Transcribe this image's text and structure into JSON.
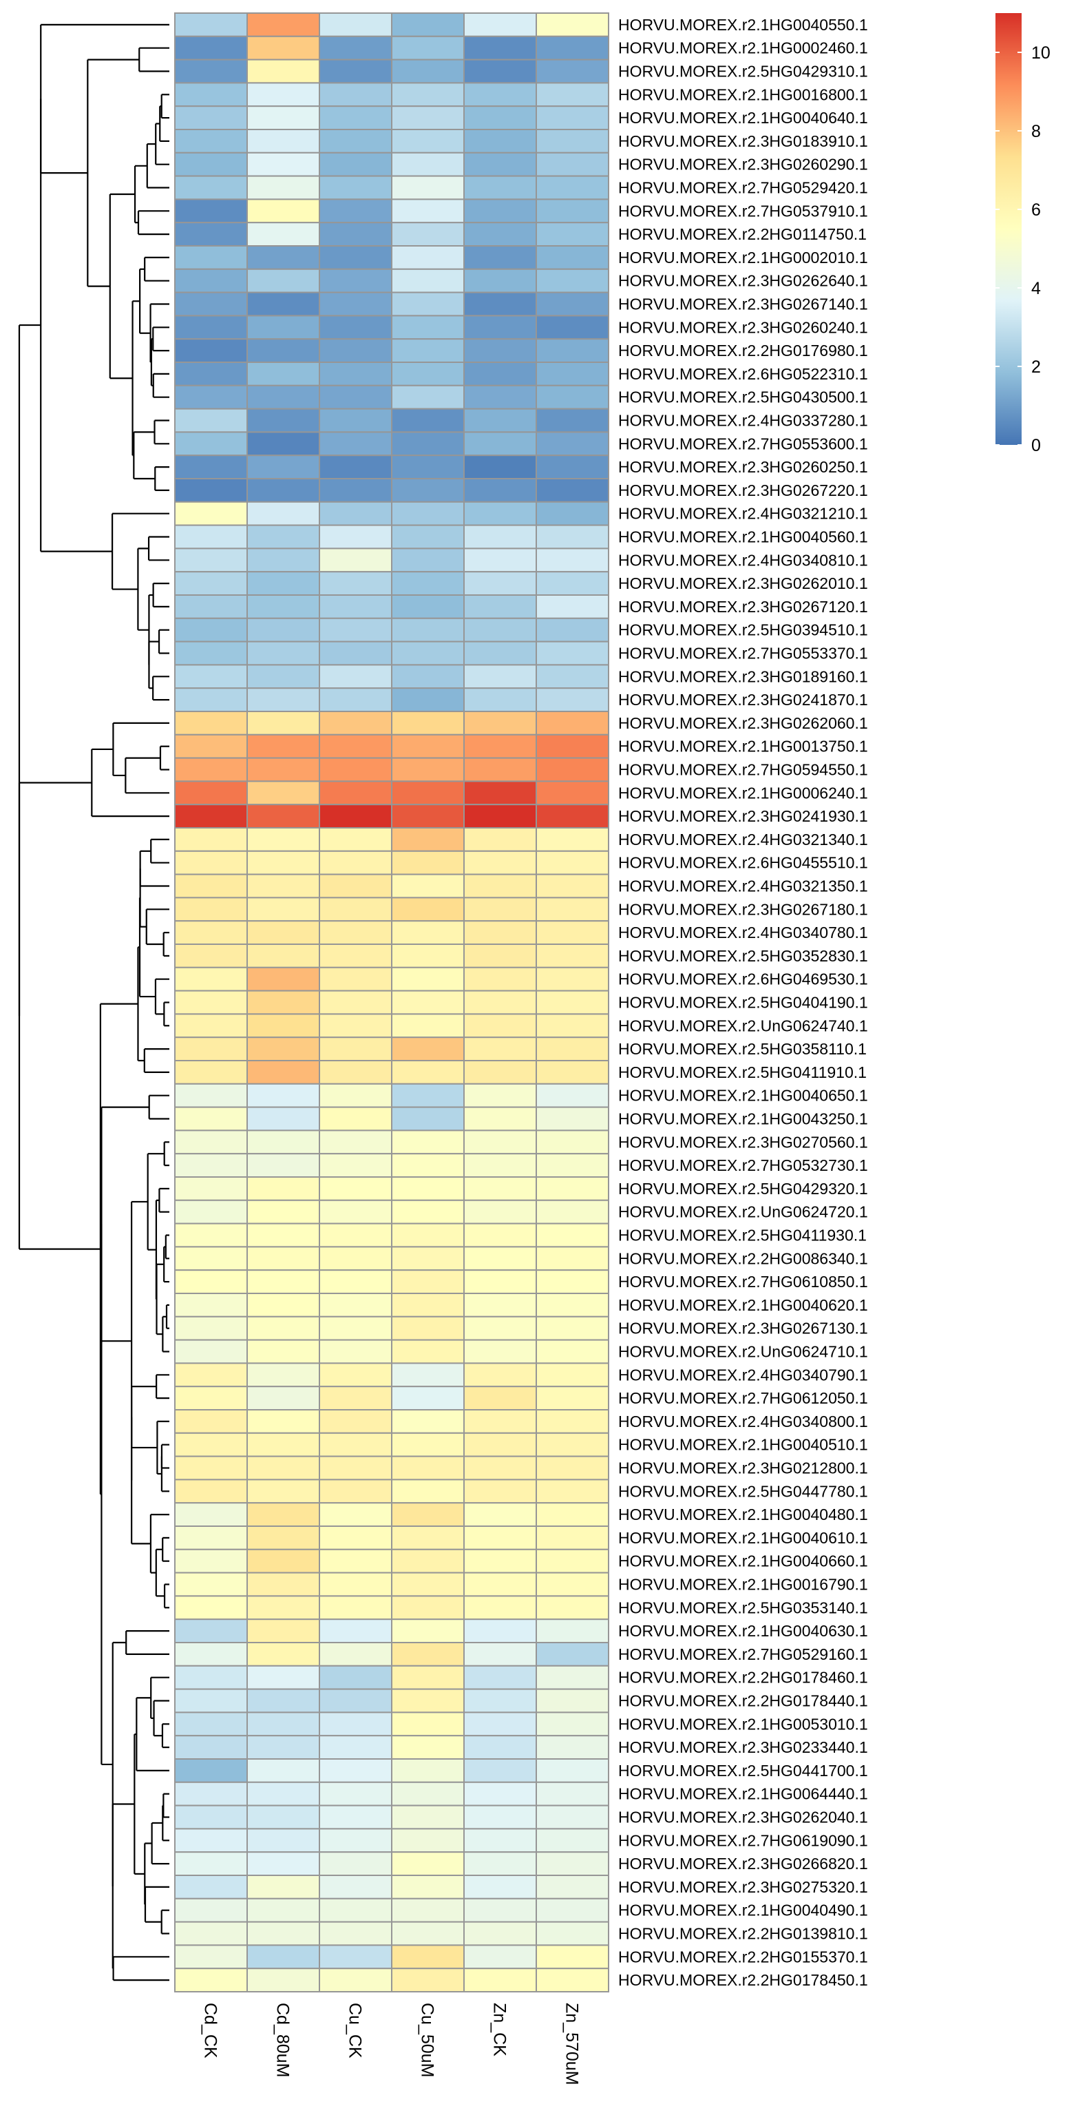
{
  "chart_data": {
    "type": "heatmap",
    "title": "",
    "columns": [
      "Cd_CK",
      "Cd_80uM",
      "Cu_CK",
      "Cu_50uM",
      "Zn_CK",
      "Zn_570uM"
    ],
    "rows": [
      {
        "gene": "HORVU.MOREX.r2.1HG0040550.1",
        "values": [
          2.5,
          8.8,
          3.3,
          1.7,
          3.5,
          5.3
        ]
      },
      {
        "gene": "HORVU.MOREX.r2.1HG0002460.1",
        "values": [
          0.7,
          7.8,
          1.0,
          2.0,
          0.6,
          1.0
        ]
      },
      {
        "gene": "HORVU.MOREX.r2.5HG0429310.1",
        "values": [
          0.9,
          6.0,
          0.8,
          1.5,
          0.6,
          1.2
        ]
      },
      {
        "gene": "HORVU.MOREX.r2.1HG0016800.1",
        "values": [
          2.0,
          3.6,
          2.2,
          2.6,
          2.0,
          2.6
        ]
      },
      {
        "gene": "HORVU.MOREX.r2.1HG0040640.1",
        "values": [
          2.2,
          3.8,
          2.0,
          2.8,
          1.8,
          2.4
        ]
      },
      {
        "gene": "HORVU.MOREX.r2.3HG0183910.1",
        "values": [
          1.9,
          3.5,
          1.8,
          2.7,
          1.6,
          2.3
        ]
      },
      {
        "gene": "HORVU.MOREX.r2.3HG0260290.1",
        "values": [
          1.7,
          3.7,
          1.6,
          3.2,
          1.5,
          2.2
        ]
      },
      {
        "gene": "HORVU.MOREX.r2.7HG0529420.1",
        "values": [
          2.1,
          4.1,
          2.0,
          4.0,
          1.9,
          2.0
        ]
      },
      {
        "gene": "HORVU.MOREX.r2.7HG0537910.1",
        "values": [
          0.6,
          5.7,
          1.2,
          3.5,
          1.4,
          1.8
        ]
      },
      {
        "gene": "HORVU.MOREX.r2.2HG0114750.1",
        "values": [
          0.8,
          3.9,
          1.1,
          2.8,
          1.4,
          2.0
        ]
      },
      {
        "gene": "HORVU.MOREX.r2.1HG0002010.1",
        "values": [
          1.8,
          1.1,
          0.9,
          3.4,
          0.9,
          1.6
        ]
      },
      {
        "gene": "HORVU.MOREX.r2.3HG0262640.1",
        "values": [
          1.4,
          2.3,
          1.3,
          3.3,
          1.6,
          2.0
        ]
      },
      {
        "gene": "HORVU.MOREX.r2.3HG0267140.1",
        "values": [
          1.1,
          0.6,
          1.2,
          2.5,
          0.6,
          1.1
        ]
      },
      {
        "gene": "HORVU.MOREX.r2.3HG0260240.1",
        "values": [
          0.8,
          1.4,
          0.9,
          2.0,
          0.9,
          0.6
        ]
      },
      {
        "gene": "HORVU.MOREX.r2.2HG0176980.1",
        "values": [
          0.5,
          0.9,
          1.1,
          2.0,
          1.1,
          1.4
        ]
      },
      {
        "gene": "HORVU.MOREX.r2.6HG0522310.1",
        "values": [
          0.9,
          1.8,
          1.4,
          1.9,
          1.0,
          1.5
        ]
      },
      {
        "gene": "HORVU.MOREX.r2.5HG0430500.1",
        "values": [
          1.3,
          1.2,
          1.2,
          2.5,
          1.3,
          1.6
        ]
      },
      {
        "gene": "HORVU.MOREX.r2.4HG0337280.1",
        "values": [
          2.6,
          0.8,
          1.4,
          0.7,
          1.5,
          0.8
        ]
      },
      {
        "gene": "HORVU.MOREX.r2.7HG0553600.1",
        "values": [
          1.9,
          0.4,
          1.3,
          0.9,
          1.6,
          1.2
        ]
      },
      {
        "gene": "HORVU.MOREX.r2.3HG0260250.1",
        "values": [
          0.7,
          1.2,
          0.5,
          0.9,
          0.3,
          0.8
        ]
      },
      {
        "gene": "HORVU.MOREX.r2.3HG0267220.1",
        "values": [
          0.4,
          0.7,
          0.8,
          1.1,
          0.8,
          0.5
        ]
      },
      {
        "gene": "HORVU.MOREX.r2.4HG0321210.1",
        "values": [
          5.4,
          3.4,
          2.2,
          2.2,
          2.0,
          1.6
        ]
      },
      {
        "gene": "HORVU.MOREX.r2.1HG0040560.1",
        "values": [
          3.2,
          2.4,
          3.4,
          2.3,
          3.2,
          3.0
        ]
      },
      {
        "gene": "HORVU.MOREX.r2.4HG0340810.1",
        "values": [
          3.0,
          2.4,
          4.6,
          2.2,
          3.4,
          3.4
        ]
      },
      {
        "gene": "HORVU.MOREX.r2.3HG0262010.1",
        "values": [
          2.6,
          2.0,
          2.6,
          2.0,
          2.9,
          2.7
        ]
      },
      {
        "gene": "HORVU.MOREX.r2.3HG0267120.1",
        "values": [
          2.3,
          2.1,
          2.4,
          1.8,
          2.3,
          3.4
        ]
      },
      {
        "gene": "HORVU.MOREX.r2.5HG0394510.1",
        "values": [
          1.9,
          2.2,
          2.5,
          2.3,
          2.3,
          2.2
        ]
      },
      {
        "gene": "HORVU.MOREX.r2.7HG0553370.1",
        "values": [
          2.1,
          2.4,
          2.2,
          2.3,
          2.3,
          2.7
        ]
      },
      {
        "gene": "HORVU.MOREX.r2.3HG0189160.1",
        "values": [
          2.7,
          2.4,
          3.1,
          2.2,
          3.1,
          2.6
        ]
      },
      {
        "gene": "HORVU.MOREX.r2.3HG0241870.1",
        "values": [
          2.6,
          2.8,
          2.6,
          1.6,
          2.6,
          2.8
        ]
      },
      {
        "gene": "HORVU.MOREX.r2.3HG0262060.1",
        "values": [
          7.5,
          6.7,
          7.9,
          7.5,
          7.9,
          8.4
        ]
      },
      {
        "gene": "HORVU.MOREX.r2.1HG0013750.1",
        "values": [
          8.1,
          8.9,
          8.9,
          8.5,
          8.9,
          9.4
        ]
      },
      {
        "gene": "HORVU.MOREX.r2.7HG0594550.1",
        "values": [
          8.6,
          8.7,
          9.0,
          8.5,
          8.8,
          9.3
        ]
      },
      {
        "gene": "HORVU.MOREX.r2.1HG0006240.1",
        "values": [
          9.6,
          7.7,
          9.5,
          9.7,
          10.6,
          9.4
        ]
      },
      {
        "gene": "HORVU.MOREX.r2.3HG0241930.1",
        "values": [
          10.8,
          10.0,
          11.0,
          10.2,
          11.0,
          10.5
        ]
      },
      {
        "gene": "HORVU.MOREX.r2.4HG0321340.1",
        "values": [
          6.2,
          5.9,
          6.0,
          8.0,
          6.3,
          5.9
        ]
      },
      {
        "gene": "HORVU.MOREX.r2.6HG0455510.1",
        "values": [
          6.3,
          6.1,
          6.2,
          6.9,
          6.2,
          6.1
        ]
      },
      {
        "gene": "HORVU.MOREX.r2.4HG0321350.1",
        "values": [
          6.7,
          6.3,
          6.8,
          5.9,
          6.5,
          6.3
        ]
      },
      {
        "gene": "HORVU.MOREX.r2.3HG0267180.1",
        "values": [
          6.7,
          6.2,
          6.5,
          7.4,
          6.6,
          6.3
        ]
      },
      {
        "gene": "HORVU.MOREX.r2.4HG0340780.1",
        "values": [
          6.5,
          6.8,
          6.5,
          6.1,
          6.6,
          6.4
        ]
      },
      {
        "gene": "HORVU.MOREX.r2.5HG0352830.1",
        "values": [
          6.6,
          6.5,
          6.4,
          6.0,
          6.6,
          6.3
        ]
      },
      {
        "gene": "HORVU.MOREX.r2.6HG0469530.1",
        "values": [
          6.0,
          8.2,
          6.4,
          5.7,
          6.4,
          6.2
        ]
      },
      {
        "gene": "HORVU.MOREX.r2.5HG0404190.1",
        "values": [
          6.1,
          7.5,
          6.2,
          5.9,
          6.2,
          6.1
        ]
      },
      {
        "gene": "HORVU.MOREX.r2.UnG0624740.1",
        "values": [
          6.2,
          7.3,
          6.2,
          5.8,
          6.4,
          6.2
        ]
      },
      {
        "gene": "HORVU.MOREX.r2.5HG0358110.1",
        "values": [
          6.6,
          7.8,
          6.5,
          7.9,
          6.4,
          6.5
        ]
      },
      {
        "gene": "HORVU.MOREX.r2.5HG0411910.1",
        "values": [
          6.5,
          8.2,
          6.6,
          6.4,
          6.6,
          6.5
        ]
      },
      {
        "gene": "HORVU.MOREX.r2.1HG0040650.1",
        "values": [
          4.3,
          3.6,
          5.1,
          2.7,
          5.0,
          4.0
        ]
      },
      {
        "gene": "HORVU.MOREX.r2.1HG0043250.1",
        "values": [
          5.2,
          3.4,
          5.7,
          2.6,
          5.2,
          4.6
        ]
      },
      {
        "gene": "HORVU.MOREX.r2.3HG0270560.1",
        "values": [
          4.8,
          4.7,
          4.9,
          5.3,
          5.1,
          5.1
        ]
      },
      {
        "gene": "HORVU.MOREX.r2.7HG0532730.1",
        "values": [
          4.6,
          4.5,
          5.0,
          5.4,
          5.1,
          5.1
        ]
      },
      {
        "gene": "HORVU.MOREX.r2.5HG0429320.1",
        "values": [
          5.0,
          5.7,
          5.5,
          5.5,
          5.4,
          5.4
        ]
      },
      {
        "gene": "HORVU.MOREX.r2.UnG0624720.1",
        "values": [
          4.7,
          5.5,
          5.2,
          5.5,
          5.1,
          5.1
        ]
      },
      {
        "gene": "HORVU.MOREX.r2.5HG0411930.1",
        "values": [
          5.4,
          5.5,
          5.6,
          5.8,
          5.6,
          5.5
        ]
      },
      {
        "gene": "HORVU.MOREX.r2.2HG0086340.1",
        "values": [
          5.4,
          5.6,
          5.7,
          5.9,
          5.5,
          5.6
        ]
      },
      {
        "gene": "HORVU.MOREX.r2.7HG0610850.1",
        "values": [
          5.5,
          5.5,
          5.5,
          6.1,
          5.5,
          5.5
        ]
      },
      {
        "gene": "HORVU.MOREX.r2.1HG0040620.1",
        "values": [
          5.0,
          5.5,
          5.3,
          6.1,
          5.3,
          5.4
        ]
      },
      {
        "gene": "HORVU.MOREX.r2.3HG0267130.1",
        "values": [
          4.9,
          5.4,
          5.3,
          6.2,
          5.3,
          5.4
        ]
      },
      {
        "gene": "HORVU.MOREX.r2.UnG0624710.1",
        "values": [
          4.6,
          5.4,
          5.2,
          6.0,
          5.2,
          5.4
        ]
      },
      {
        "gene": "HORVU.MOREX.r2.4HG0340790.1",
        "values": [
          6.1,
          4.8,
          6.0,
          4.0,
          6.1,
          5.8
        ]
      },
      {
        "gene": "HORVU.MOREX.r2.7HG0612050.1",
        "values": [
          5.8,
          4.5,
          6.3,
          3.8,
          6.7,
          5.8
        ]
      },
      {
        "gene": "HORVU.MOREX.r2.4HG0340800.1",
        "values": [
          6.3,
          5.6,
          6.3,
          5.4,
          6.1,
          6.0
        ]
      },
      {
        "gene": "HORVU.MOREX.r2.1HG0040510.1",
        "values": [
          6.1,
          6.0,
          6.1,
          5.8,
          6.2,
          6.1
        ]
      },
      {
        "gene": "HORVU.MOREX.r2.3HG0212800.1",
        "values": [
          6.2,
          6.2,
          6.2,
          6.2,
          6.2,
          6.2
        ]
      },
      {
        "gene": "HORVU.MOREX.r2.5HG0447780.1",
        "values": [
          6.4,
          6.1,
          6.3,
          5.7,
          6.2,
          6.1
        ]
      },
      {
        "gene": "HORVU.MOREX.r2.1HG0040480.1",
        "values": [
          4.6,
          7.0,
          5.4,
          6.9,
          5.4,
          5.7
        ]
      },
      {
        "gene": "HORVU.MOREX.r2.1HG0040610.1",
        "values": [
          5.0,
          6.7,
          5.6,
          6.1,
          5.6,
          5.8
        ]
      },
      {
        "gene": "HORVU.MOREX.r2.1HG0040660.1",
        "values": [
          5.0,
          7.1,
          5.6,
          6.2,
          5.6,
          5.7
        ]
      },
      {
        "gene": "HORVU.MOREX.r2.1HG0016790.1",
        "values": [
          5.3,
          6.3,
          5.7,
          6.1,
          5.7,
          5.7
        ]
      },
      {
        "gene": "HORVU.MOREX.r2.5HG0353140.1",
        "values": [
          5.5,
          6.1,
          5.7,
          6.2,
          5.7,
          5.7
        ]
      },
      {
        "gene": "HORVU.MOREX.r2.1HG0040630.1",
        "values": [
          2.8,
          6.3,
          3.6,
          5.3,
          3.6,
          4.1
        ]
      },
      {
        "gene": "HORVU.MOREX.r2.7HG0529160.1",
        "values": [
          4.1,
          6.0,
          4.6,
          6.8,
          4.0,
          2.6
        ]
      },
      {
        "gene": "HORVU.MOREX.r2.2HG0178460.1",
        "values": [
          3.3,
          3.7,
          2.6,
          6.2,
          3.1,
          4.3
        ]
      },
      {
        "gene": "HORVU.MOREX.r2.2HG0178440.1",
        "values": [
          3.3,
          2.9,
          2.8,
          6.1,
          3.3,
          4.5
        ]
      },
      {
        "gene": "HORVU.MOREX.r2.1HG0053010.1",
        "values": [
          3.0,
          3.1,
          3.4,
          5.7,
          3.4,
          4.4
        ]
      },
      {
        "gene": "HORVU.MOREX.r2.3HG0233440.1",
        "values": [
          2.9,
          3.1,
          3.5,
          5.4,
          3.2,
          4.2
        ]
      },
      {
        "gene": "HORVU.MOREX.r2.5HG0441700.1",
        "values": [
          1.8,
          3.8,
          3.7,
          4.7,
          3.1,
          3.9
        ]
      },
      {
        "gene": "HORVU.MOREX.r2.1HG0064440.1",
        "values": [
          3.4,
          3.5,
          3.9,
          4.4,
          3.7,
          4.0
        ]
      },
      {
        "gene": "HORVU.MOREX.r2.3HG0262040.1",
        "values": [
          3.2,
          3.3,
          3.8,
          4.6,
          3.8,
          4.0
        ]
      },
      {
        "gene": "HORVU.MOREX.r2.7HG0619090.1",
        "values": [
          3.6,
          3.5,
          3.9,
          4.6,
          3.9,
          4.1
        ]
      },
      {
        "gene": "HORVU.MOREX.r2.3HG0266820.1",
        "values": [
          3.9,
          3.7,
          4.2,
          5.3,
          4.1,
          4.3
        ]
      },
      {
        "gene": "HORVU.MOREX.r2.3HG0275320.1",
        "values": [
          3.2,
          4.9,
          4.0,
          5.0,
          3.8,
          4.3
        ]
      },
      {
        "gene": "HORVU.MOREX.r2.1HG0040490.1",
        "values": [
          4.2,
          4.4,
          4.4,
          4.5,
          4.2,
          4.2
        ]
      },
      {
        "gene": "HORVU.MOREX.r2.2HG0139810.1",
        "values": [
          4.5,
          4.5,
          4.5,
          4.5,
          4.5,
          4.4
        ]
      },
      {
        "gene": "HORVU.MOREX.r2.2HG0155370.1",
        "values": [
          4.5,
          2.7,
          3.0,
          7.0,
          4.2,
          5.6
        ]
      },
      {
        "gene": "HORVU.MOREX.r2.2HG0178450.1",
        "values": [
          5.4,
          4.8,
          5.2,
          6.3,
          5.6,
          5.6
        ]
      }
    ],
    "color_scale": {
      "min": 0,
      "max": 11,
      "stops": [
        "#4575b4",
        "#91bfdb",
        "#e0f3f8",
        "#ffffbf",
        "#fee090",
        "#fc8d59",
        "#d73027"
      ],
      "ticks": [
        0,
        2,
        4,
        6,
        8,
        10
      ]
    },
    "cell_border_color": "#969696",
    "dendrogram": "rows"
  }
}
